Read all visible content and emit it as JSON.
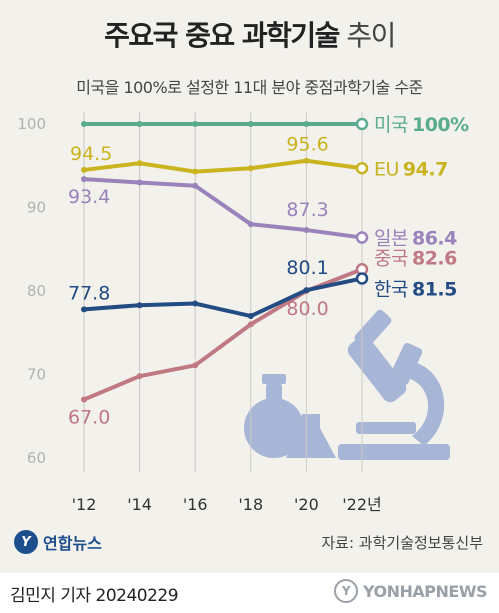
{
  "header": {
    "title_bold": "주요국 중요 과학기술",
    "title_light": "추이",
    "subtitle": "미국을 100%로 설정한 11대 분야 중점과학기술 수준"
  },
  "chart_data": {
    "type": "line",
    "x": [
      "'12",
      "'14",
      "'16",
      "'18",
      "'20",
      "'22년"
    ],
    "ylim": [
      60,
      100
    ],
    "yticks": [
      60,
      70,
      80,
      90,
      100
    ],
    "grid": "vertical",
    "series": [
      {
        "name": "미국",
        "values": [
          100,
          100,
          100,
          100,
          100,
          100
        ],
        "color": "#5aab8f",
        "end_label": "100%",
        "point_labels": []
      },
      {
        "name": "EU",
        "values": [
          94.5,
          95.3,
          94.3,
          94.7,
          95.6,
          94.7
        ],
        "color": "#c9b420",
        "end_label": "94.7",
        "point_labels": [
          {
            "i": 0,
            "text": "94.5"
          },
          {
            "i": 4,
            "text": "95.6"
          }
        ]
      },
      {
        "name": "일본",
        "values": [
          93.4,
          93.0,
          92.6,
          88.0,
          87.3,
          86.4
        ],
        "color": "#9a83bb",
        "end_label": "86.4",
        "point_labels": [
          {
            "i": 0,
            "text": "93.4"
          },
          {
            "i": 4,
            "text": "87.3"
          }
        ]
      },
      {
        "name": "중국",
        "values": [
          67.0,
          69.8,
          71.1,
          76.0,
          80.0,
          82.6
        ],
        "color": "#c07882",
        "end_label": "82.6",
        "point_labels": [
          {
            "i": 0,
            "text": "67.0"
          },
          {
            "i": 4,
            "text": "80.0"
          }
        ]
      },
      {
        "name": "한국",
        "values": [
          77.8,
          78.3,
          78.5,
          77.0,
          80.1,
          81.5
        ],
        "color": "#234c83",
        "end_label": "81.5",
        "point_labels": [
          {
            "i": 0,
            "text": "77.8"
          },
          {
            "i": 4,
            "text": "80.1"
          }
        ]
      }
    ]
  },
  "footer": {
    "logo_mark": "Y",
    "logo_text": "연합뉴스",
    "source": "자료: 과학기술정보통신부",
    "reporter": "김민지 기자  20240229",
    "watermark_mark": "Y",
    "watermark": "YONHAPNEWS"
  }
}
